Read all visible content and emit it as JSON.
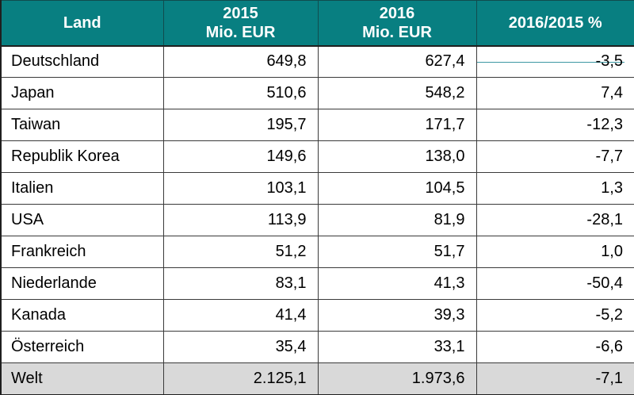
{
  "colors": {
    "header_bg": "#087f81",
    "header_text": "#ffffff",
    "total_row_bg": "#d9d9d9",
    "border_outer": "#1f1f1f",
    "border_inner": "#3a3a3a",
    "accent_line": "#3d98a3"
  },
  "chart_data": {
    "type": "table",
    "title": "",
    "columns": [
      {
        "label": "Land"
      },
      {
        "label": "2015",
        "sublabel": "Mio. EUR"
      },
      {
        "label": "2016",
        "sublabel": "Mio. EUR"
      },
      {
        "label": "2016/2015 %"
      }
    ],
    "rows": [
      {
        "land": "Deutschland",
        "y2015": "649,8",
        "y2016": "627,4",
        "change_pct": "-3,5"
      },
      {
        "land": "Japan",
        "y2015": "510,6",
        "y2016": "548,2",
        "change_pct": "7,4"
      },
      {
        "land": "Taiwan",
        "y2015": "195,7",
        "y2016": "171,7",
        "change_pct": "-12,3"
      },
      {
        "land": "Republik Korea",
        "y2015": "149,6",
        "y2016": "138,0",
        "change_pct": "-7,7"
      },
      {
        "land": "Italien",
        "y2015": "103,1",
        "y2016": "104,5",
        "change_pct": "1,3"
      },
      {
        "land": "USA",
        "y2015": "113,9",
        "y2016": "81,9",
        "change_pct": "-28,1"
      },
      {
        "land": "Frankreich",
        "y2015": "51,2",
        "y2016": "51,7",
        "change_pct": "1,0"
      },
      {
        "land": "Niederlande",
        "y2015": "83,1",
        "y2016": "41,3",
        "change_pct": "-50,4"
      },
      {
        "land": "Kanada",
        "y2015": "41,4",
        "y2016": "39,3",
        "change_pct": "-5,2"
      },
      {
        "land": "Österreich",
        "y2015": "35,4",
        "y2016": "33,1",
        "change_pct": "-6,6"
      },
      {
        "land": "Welt",
        "y2015": "2.125,1",
        "y2016": "1.973,6",
        "change_pct": "-7,1"
      }
    ],
    "numeric_values": {
      "y2015": [
        649.8,
        510.6,
        195.7,
        149.6,
        103.1,
        113.9,
        51.2,
        83.1,
        41.4,
        35.4,
        2125.1
      ],
      "y2016": [
        627.4,
        548.2,
        171.7,
        138.0,
        104.5,
        81.9,
        51.7,
        41.3,
        39.3,
        33.1,
        1973.6
      ],
      "change_pct": [
        -3.5,
        7.4,
        -12.3,
        -7.7,
        1.3,
        -28.1,
        1.0,
        -50.4,
        -5.2,
        -6.6,
        -7.1
      ]
    }
  }
}
